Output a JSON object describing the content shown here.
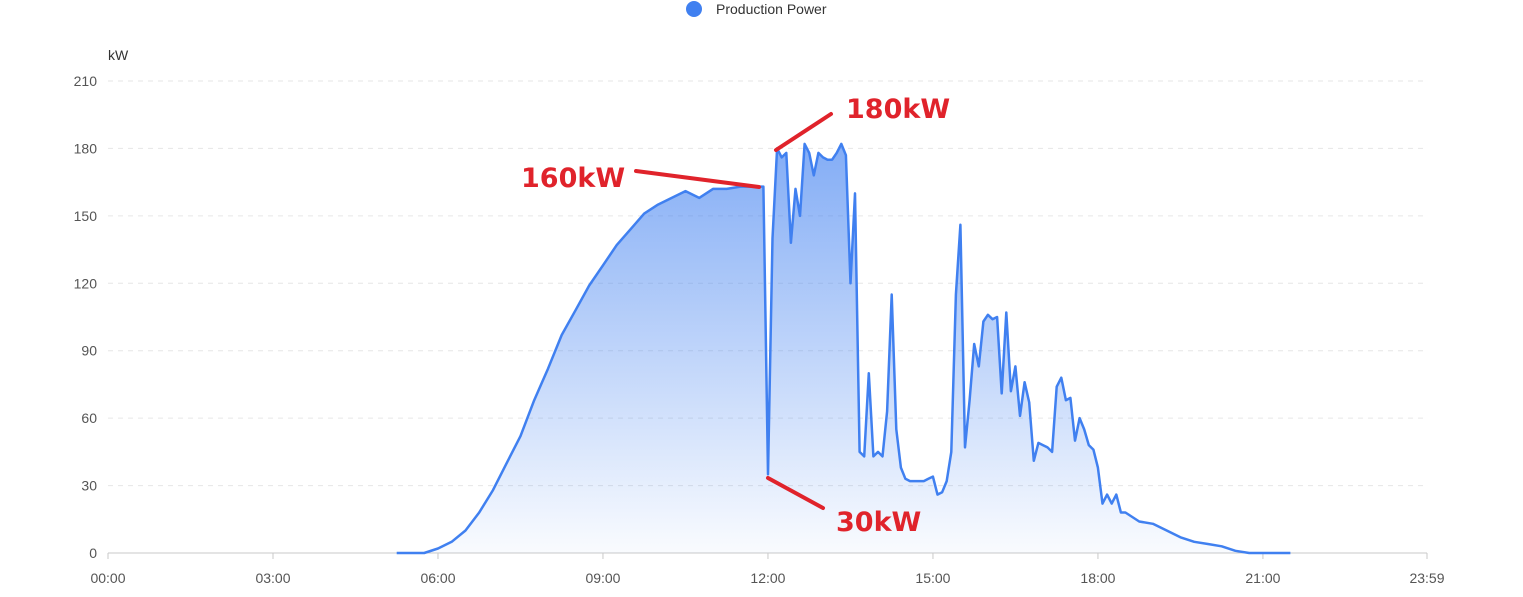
{
  "legend": {
    "label": "Production Power",
    "color": "#4080f0"
  },
  "chart_data": {
    "type": "area",
    "title": "",
    "xlabel": "",
    "ylabel": "kW",
    "ylim": [
      0,
      210
    ],
    "yticks": [
      "0",
      "30",
      "60",
      "90",
      "120",
      "150",
      "180",
      "210"
    ],
    "xticks": [
      "00:00",
      "03:00",
      "06:00",
      "09:00",
      "12:00",
      "15:00",
      "18:00",
      "21:00",
      "23:59"
    ],
    "grid": true,
    "legend_position": "top-center",
    "series": [
      {
        "name": "Production Power",
        "color": "#4080f0",
        "x": [
          "05:15",
          "05:30",
          "05:45",
          "06:00",
          "06:15",
          "06:30",
          "06:45",
          "07:00",
          "07:15",
          "07:30",
          "07:45",
          "08:00",
          "08:15",
          "08:30",
          "08:45",
          "09:00",
          "09:15",
          "09:30",
          "09:45",
          "10:00",
          "10:15",
          "10:30",
          "10:45",
          "11:00",
          "11:15",
          "11:30",
          "11:45",
          "11:50",
          "11:55",
          "12:00",
          "12:05",
          "12:10",
          "12:15",
          "12:20",
          "12:25",
          "12:30",
          "12:35",
          "12:40",
          "12:45",
          "12:50",
          "12:55",
          "13:00",
          "13:05",
          "13:10",
          "13:15",
          "13:20",
          "13:25",
          "13:30",
          "13:35",
          "13:40",
          "13:45",
          "13:50",
          "13:55",
          "14:00",
          "14:05",
          "14:10",
          "14:15",
          "14:20",
          "14:25",
          "14:30",
          "14:35",
          "14:40",
          "14:45",
          "14:50",
          "14:55",
          "15:00",
          "15:05",
          "15:10",
          "15:15",
          "15:20",
          "15:25",
          "15:30",
          "15:35",
          "15:40",
          "15:45",
          "15:50",
          "15:55",
          "16:00",
          "16:05",
          "16:10",
          "16:15",
          "16:20",
          "16:25",
          "16:30",
          "16:35",
          "16:40",
          "16:45",
          "16:50",
          "16:55",
          "17:00",
          "17:05",
          "17:10",
          "17:15",
          "17:20",
          "17:25",
          "17:30",
          "17:35",
          "17:40",
          "17:45",
          "17:50",
          "17:55",
          "18:00",
          "18:05",
          "18:10",
          "18:15",
          "18:20",
          "18:25",
          "18:30",
          "18:45",
          "19:00",
          "19:15",
          "19:30",
          "19:45",
          "20:00",
          "20:15",
          "20:30",
          "20:45",
          "21:00",
          "21:15",
          "21:30"
        ],
        "values": [
          0,
          0,
          0,
          2,
          5,
          10,
          18,
          28,
          40,
          52,
          68,
          82,
          97,
          108,
          119,
          128,
          137,
          144,
          151,
          155,
          158,
          161,
          158,
          162,
          162,
          163,
          163,
          163,
          163,
          35,
          140,
          180,
          176,
          178,
          138,
          162,
          150,
          182,
          178,
          168,
          178,
          176,
          175,
          175,
          178,
          182,
          177,
          120,
          160,
          45,
          43,
          80,
          43,
          45,
          43,
          63,
          115,
          55,
          38,
          33,
          32,
          32,
          32,
          32,
          33,
          34,
          26,
          27,
          32,
          45,
          115,
          146,
          47,
          68,
          93,
          83,
          103,
          106,
          104,
          105,
          71,
          107,
          72,
          83,
          61,
          76,
          67,
          41,
          49,
          48,
          47,
          45,
          74,
          78,
          68,
          69,
          50,
          60,
          55,
          48,
          46,
          38,
          22,
          26,
          22,
          26,
          18,
          18,
          14,
          13,
          10,
          7,
          5,
          4,
          3,
          1,
          0,
          0,
          0,
          0
        ]
      }
    ],
    "annotations": [
      "160kW",
      "180kW",
      "30kW"
    ]
  }
}
